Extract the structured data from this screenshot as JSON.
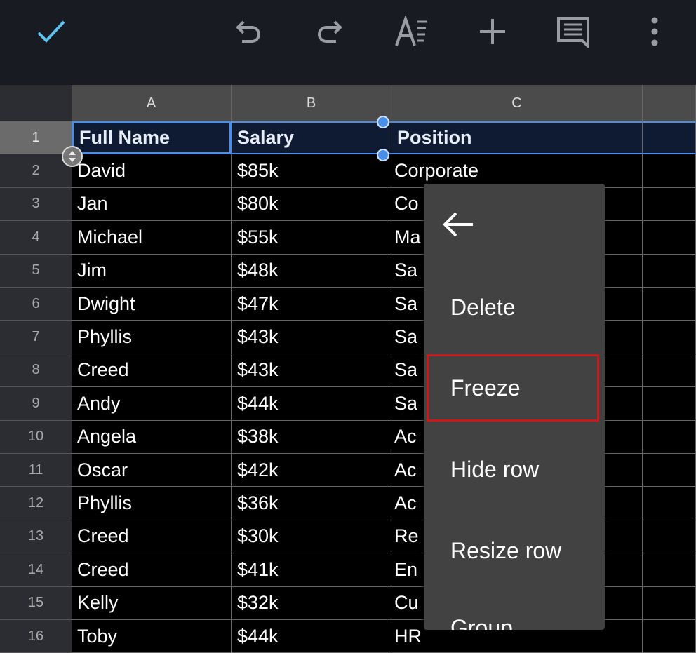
{
  "toolbar": {
    "icons": [
      "check-icon",
      "undo-icon",
      "redo-icon",
      "text-format-icon",
      "add-icon",
      "comment-icon",
      "more-vert-icon"
    ],
    "accent": "#5bc3ee"
  },
  "columns": [
    "A",
    "B",
    "C"
  ],
  "rows": [
    {
      "n": "1",
      "a": "Full Name",
      "b": "Salary",
      "c": "Position"
    },
    {
      "n": "2",
      "a": "David",
      "b": "$85k",
      "c": "Corporate"
    },
    {
      "n": "3",
      "a": "Jan",
      "b": "$80k",
      "c": "Co"
    },
    {
      "n": "4",
      "a": "Michael",
      "b": "$55k",
      "c": "Ma"
    },
    {
      "n": "5",
      "a": "Jim",
      "b": "$48k",
      "c": "Sa"
    },
    {
      "n": "6",
      "a": "Dwight",
      "b": "$47k",
      "c": "Sa"
    },
    {
      "n": "7",
      "a": "Phyllis",
      "b": "$43k",
      "c": "Sa"
    },
    {
      "n": "8",
      "a": "Creed",
      "b": "$43k",
      "c": "Sa"
    },
    {
      "n": "9",
      "a": "Andy",
      "b": "$44k",
      "c": "Sa"
    },
    {
      "n": "10",
      "a": "Angela",
      "b": "$38k",
      "c": "Ac"
    },
    {
      "n": "11",
      "a": "Oscar",
      "b": "$42k",
      "c": "Ac"
    },
    {
      "n": "12",
      "a": "Phyllis",
      "b": "$36k",
      "c": "Ac"
    },
    {
      "n": "13",
      "a": "Creed",
      "b": "$30k",
      "c": "Re"
    },
    {
      "n": "14",
      "a": "Creed",
      "b": "$41k",
      "c": "En"
    },
    {
      "n": "15",
      "a": "Kelly",
      "b": "$32k",
      "c": "Cu"
    },
    {
      "n": "16",
      "a": "Toby",
      "b": "$44k",
      "c": "HR"
    }
  ],
  "menu": {
    "items": [
      "Delete",
      "Freeze",
      "Hide row",
      "Resize row",
      "Group"
    ],
    "highlighted": "Freeze",
    "highlight_color": "#d0161b"
  },
  "selection_color": "#4a8fe6"
}
